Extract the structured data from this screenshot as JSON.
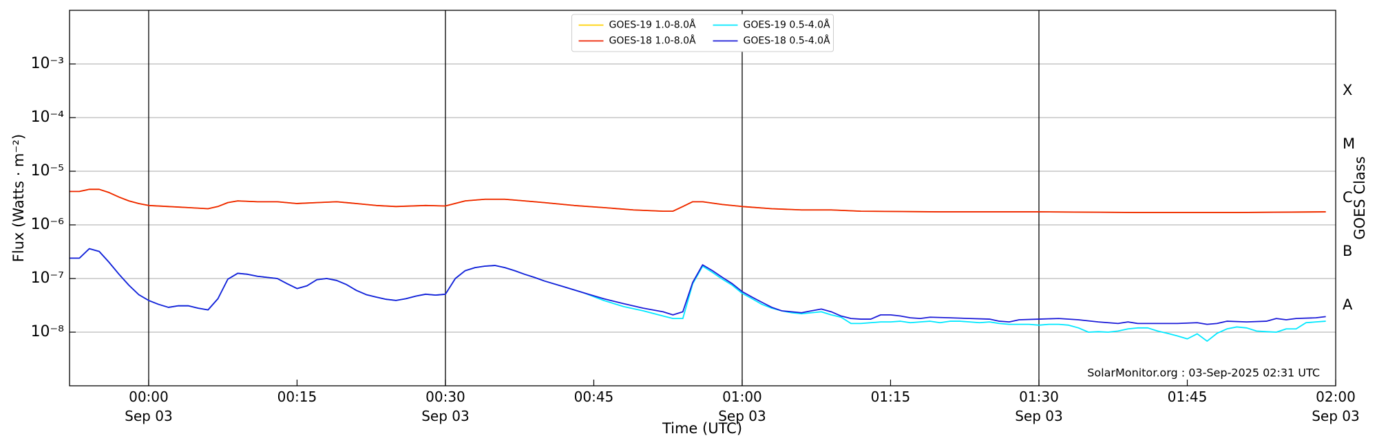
{
  "chart_data": {
    "type": "line",
    "ylabel": "Flux (Watts · m⁻²)",
    "xlabel": "Time (UTC)",
    "y2label": "GOES Class",
    "annotation": "SolarMonitor.org : 03-Sep-2025 02:31 UTC",
    "yscale": "log",
    "ylim": [
      1e-09,
      0.01
    ],
    "yticks": [
      {
        "value": 0.001,
        "label": "10⁻³"
      },
      {
        "value": 0.0001,
        "label": "10⁻⁴"
      },
      {
        "value": 1e-05,
        "label": "10⁻⁵"
      },
      {
        "value": 1e-06,
        "label": "10⁻⁶"
      },
      {
        "value": 1e-07,
        "label": "10⁻⁷"
      },
      {
        "value": 1e-08,
        "label": "10⁻⁸"
      }
    ],
    "y2lim": [
      1e-09,
      0.01
    ],
    "y2ticks": [
      {
        "value": 0.000316,
        "label": "X"
      },
      {
        "value": 3.16e-05,
        "label": "M"
      },
      {
        "value": 3.16e-06,
        "label": "C"
      },
      {
        "value": 3.16e-07,
        "label": "B"
      },
      {
        "value": 3.16e-08,
        "label": "A"
      }
    ],
    "xlim": [
      -8,
      120
    ],
    "xticks": [
      {
        "value": 0,
        "label": "00:00\nSep 03"
      },
      {
        "value": 15,
        "label": "00:15"
      },
      {
        "value": 30,
        "label": "00:30\nSep 03"
      },
      {
        "value": 45,
        "label": "00:45"
      },
      {
        "value": 60,
        "label": "01:00\nSep 03"
      },
      {
        "value": 75,
        "label": "01:15"
      },
      {
        "value": 90,
        "label": "01:30\nSep 03"
      },
      {
        "value": 105,
        "label": "01:45"
      },
      {
        "value": 120,
        "label": "02:00\nSep 03"
      }
    ],
    "vlines": [
      0,
      30,
      60,
      90
    ],
    "grid": true,
    "legend": "upper center",
    "series": [
      {
        "name": "GOES-19 1.0-8.0Å",
        "color": "#ffd000",
        "x": [
          -8,
          -7,
          -6,
          -5,
          -4,
          -3,
          -2,
          -1,
          0,
          2,
          4,
          6,
          7,
          8,
          9,
          11,
          13,
          15,
          17,
          19,
          21,
          23,
          25,
          28,
          30,
          32,
          34,
          36,
          38,
          40,
          43,
          46,
          49,
          52,
          53,
          54,
          55,
          56,
          58,
          60,
          63,
          66,
          69,
          72,
          80,
          90,
          100,
          110,
          119
        ],
        "values": [
          4.2e-06,
          4.2e-06,
          4.6e-06,
          4.6e-06,
          4e-06,
          3.3e-06,
          2.8e-06,
          2.5e-06,
          2.3e-06,
          2.2e-06,
          2.1e-06,
          2e-06,
          2.2e-06,
          2.6e-06,
          2.8e-06,
          2.7e-06,
          2.7e-06,
          2.5e-06,
          2.6e-06,
          2.7e-06,
          2.5e-06,
          2.3e-06,
          2.2e-06,
          2.3e-06,
          2.25e-06,
          2.8e-06,
          3e-06,
          3e-06,
          2.8e-06,
          2.6e-06,
          2.3e-06,
          2.1e-06,
          1.9e-06,
          1.8e-06,
          1.8e-06,
          2.2e-06,
          2.7e-06,
          2.7e-06,
          2.4e-06,
          2.2e-06,
          2e-06,
          1.9e-06,
          1.9e-06,
          1.8e-06,
          1.75e-06,
          1.75e-06,
          1.7e-06,
          1.7e-06,
          1.75e-06
        ]
      },
      {
        "name": "GOES-18 1.0-8.0Å",
        "color": "#ee2200",
        "x": [
          -8,
          -7,
          -6,
          -5,
          -4,
          -3,
          -2,
          -1,
          0,
          2,
          4,
          6,
          7,
          8,
          9,
          11,
          13,
          15,
          17,
          19,
          21,
          23,
          25,
          28,
          30,
          32,
          34,
          36,
          38,
          40,
          43,
          46,
          49,
          52,
          53,
          54,
          55,
          56,
          58,
          60,
          63,
          66,
          69,
          72,
          80,
          90,
          100,
          110,
          119
        ],
        "values": [
          4.2e-06,
          4.2e-06,
          4.6e-06,
          4.6e-06,
          4e-06,
          3.3e-06,
          2.8e-06,
          2.5e-06,
          2.3e-06,
          2.2e-06,
          2.1e-06,
          2e-06,
          2.2e-06,
          2.6e-06,
          2.8e-06,
          2.7e-06,
          2.7e-06,
          2.5e-06,
          2.6e-06,
          2.7e-06,
          2.5e-06,
          2.3e-06,
          2.2e-06,
          2.3e-06,
          2.25e-06,
          2.8e-06,
          3e-06,
          3e-06,
          2.8e-06,
          2.6e-06,
          2.3e-06,
          2.1e-06,
          1.9e-06,
          1.8e-06,
          1.8e-06,
          2.2e-06,
          2.7e-06,
          2.7e-06,
          2.4e-06,
          2.2e-06,
          2e-06,
          1.9e-06,
          1.9e-06,
          1.8e-06,
          1.75e-06,
          1.75e-06,
          1.7e-06,
          1.7e-06,
          1.75e-06
        ]
      },
      {
        "name": "GOES-19 0.5-4.0Å",
        "color": "#00e8ff",
        "x": [
          -8,
          -7,
          -6,
          -5,
          -4,
          -3,
          -2,
          -1,
          0,
          1,
          2,
          3,
          4,
          5,
          6,
          7,
          8,
          9,
          10,
          11,
          12,
          13,
          14,
          15,
          16,
          17,
          18,
          19,
          20,
          21,
          22,
          23,
          24,
          25,
          26,
          27,
          28,
          29,
          30,
          31,
          32,
          33,
          34,
          35,
          36,
          37,
          38,
          39,
          40,
          42,
          44,
          46,
          48,
          50,
          52,
          53,
          54,
          55,
          56,
          57,
          58,
          59,
          60,
          61,
          62,
          63,
          64,
          65,
          66,
          67,
          68,
          69,
          70,
          71,
          72,
          73,
          74,
          75,
          76,
          77,
          78,
          79,
          80,
          81,
          82,
          83,
          84,
          85,
          86,
          87,
          88,
          89,
          90,
          91,
          92,
          93,
          94,
          95,
          96,
          97,
          98,
          99,
          100,
          101,
          102,
          103,
          104,
          105,
          106,
          107,
          108,
          109,
          110,
          111,
          112,
          113,
          114,
          115,
          116,
          117,
          118,
          119
        ],
        "values": [
          2.4e-07,
          2.4e-07,
          3.6e-07,
          3.2e-07,
          2e-07,
          1.2e-07,
          7.5e-08,
          5e-08,
          3.9e-08,
          3.3e-08,
          2.9e-08,
          3.1e-08,
          3.1e-08,
          2.8e-08,
          2.6e-08,
          4.2e-08,
          9.7e-08,
          1.25e-07,
          1.2e-07,
          1.1e-07,
          1.05e-07,
          1e-07,
          8e-08,
          6.5e-08,
          7.3e-08,
          9.5e-08,
          1e-07,
          9.2e-08,
          7.7e-08,
          6e-08,
          5e-08,
          4.5e-08,
          4.1e-08,
          3.9e-08,
          4.2e-08,
          4.7e-08,
          5.1e-08,
          4.9e-08,
          5.1e-08,
          1e-07,
          1.4e-07,
          1.6e-07,
          1.7e-07,
          1.75e-07,
          1.6e-07,
          1.4e-07,
          1.2e-07,
          1.05e-07,
          9e-08,
          7e-08,
          5.4e-08,
          3.9e-08,
          3e-08,
          2.5e-08,
          2e-08,
          1.8e-08,
          1.8e-08,
          8e-08,
          1.7e-07,
          1.3e-07,
          9.7e-08,
          7.5e-08,
          5.3e-08,
          4.2e-08,
          3.3e-08,
          2.8e-08,
          2.5e-08,
          2.3e-08,
          2.2e-08,
          2.3e-08,
          2.4e-08,
          2.1e-08,
          1.9e-08,
          1.45e-08,
          1.45e-08,
          1.5e-08,
          1.55e-08,
          1.55e-08,
          1.6e-08,
          1.5e-08,
          1.55e-08,
          1.6e-08,
          1.5e-08,
          1.6e-08,
          1.6e-08,
          1.55e-08,
          1.5e-08,
          1.55e-08,
          1.45e-08,
          1.4e-08,
          1.4e-08,
          1.4e-08,
          1.35e-08,
          1.4e-08,
          1.4e-08,
          1.35e-08,
          1.2e-08,
          1e-08,
          1.02e-08,
          1e-08,
          1.05e-08,
          1.15e-08,
          1.2e-08,
          1.2e-08,
          1.05e-08,
          9.5e-09,
          8.5e-09,
          7.5e-09,
          9.3e-09,
          6.8e-09,
          9.5e-09,
          1.15e-08,
          1.25e-08,
          1.2e-08,
          1.05e-08,
          1.02e-08,
          1e-08,
          1.15e-08,
          1.15e-08,
          1.5e-08,
          1.55e-08,
          1.6e-08
        ]
      },
      {
        "name": "GOES-18 0.5-4.0Å",
        "color": "#1a1ad8",
        "x": [
          -8,
          -7,
          -6,
          -5,
          -4,
          -3,
          -2,
          -1,
          0,
          1,
          2,
          3,
          4,
          5,
          6,
          7,
          8,
          9,
          10,
          11,
          12,
          13,
          14,
          15,
          16,
          17,
          18,
          19,
          20,
          21,
          22,
          23,
          24,
          25,
          26,
          27,
          28,
          29,
          30,
          31,
          32,
          33,
          34,
          35,
          36,
          37,
          38,
          39,
          40,
          42,
          44,
          46,
          48,
          50,
          52,
          53,
          54,
          55,
          56,
          57,
          58,
          59,
          60,
          61,
          62,
          63,
          64,
          65,
          66,
          67,
          68,
          69,
          70,
          71,
          72,
          73,
          74,
          75,
          76,
          77,
          78,
          79,
          81,
          83,
          85,
          86,
          87,
          88,
          90,
          92,
          94,
          96,
          97,
          98,
          99,
          100,
          102,
          104,
          106,
          107,
          108,
          109,
          111,
          113,
          114,
          115,
          116,
          118,
          119
        ],
        "values": [
          2.4e-07,
          2.4e-07,
          3.6e-07,
          3.2e-07,
          2e-07,
          1.2e-07,
          7.5e-08,
          5e-08,
          3.9e-08,
          3.3e-08,
          2.9e-08,
          3.1e-08,
          3.1e-08,
          2.8e-08,
          2.6e-08,
          4.2e-08,
          9.7e-08,
          1.25e-07,
          1.2e-07,
          1.1e-07,
          1.05e-07,
          1e-07,
          8e-08,
          6.5e-08,
          7.3e-08,
          9.5e-08,
          1e-07,
          9.2e-08,
          7.7e-08,
          6e-08,
          5e-08,
          4.5e-08,
          4.1e-08,
          3.9e-08,
          4.2e-08,
          4.7e-08,
          5.1e-08,
          4.9e-08,
          5.1e-08,
          1e-07,
          1.4e-07,
          1.6e-07,
          1.7e-07,
          1.75e-07,
          1.6e-07,
          1.4e-07,
          1.2e-07,
          1.05e-07,
          9e-08,
          7e-08,
          5.4e-08,
          4.2e-08,
          3.4e-08,
          2.8e-08,
          2.4e-08,
          2.1e-08,
          2.4e-08,
          8.5e-08,
          1.8e-07,
          1.4e-07,
          1.05e-07,
          8e-08,
          5.7e-08,
          4.5e-08,
          3.6e-08,
          2.9e-08,
          2.5e-08,
          2.4e-08,
          2.3e-08,
          2.5e-08,
          2.7e-08,
          2.4e-08,
          2e-08,
          1.8e-08,
          1.75e-08,
          1.75e-08,
          2.1e-08,
          2.1e-08,
          2e-08,
          1.85e-08,
          1.8e-08,
          1.9e-08,
          1.85e-08,
          1.8e-08,
          1.75e-08,
          1.6e-08,
          1.55e-08,
          1.7e-08,
          1.75e-08,
          1.8e-08,
          1.7e-08,
          1.55e-08,
          1.5e-08,
          1.45e-08,
          1.55e-08,
          1.45e-08,
          1.45e-08,
          1.45e-08,
          1.5e-08,
          1.4e-08,
          1.45e-08,
          1.6e-08,
          1.55e-08,
          1.6e-08,
          1.8e-08,
          1.7e-08,
          1.8e-08,
          1.85e-08,
          1.95e-08
        ]
      }
    ]
  }
}
